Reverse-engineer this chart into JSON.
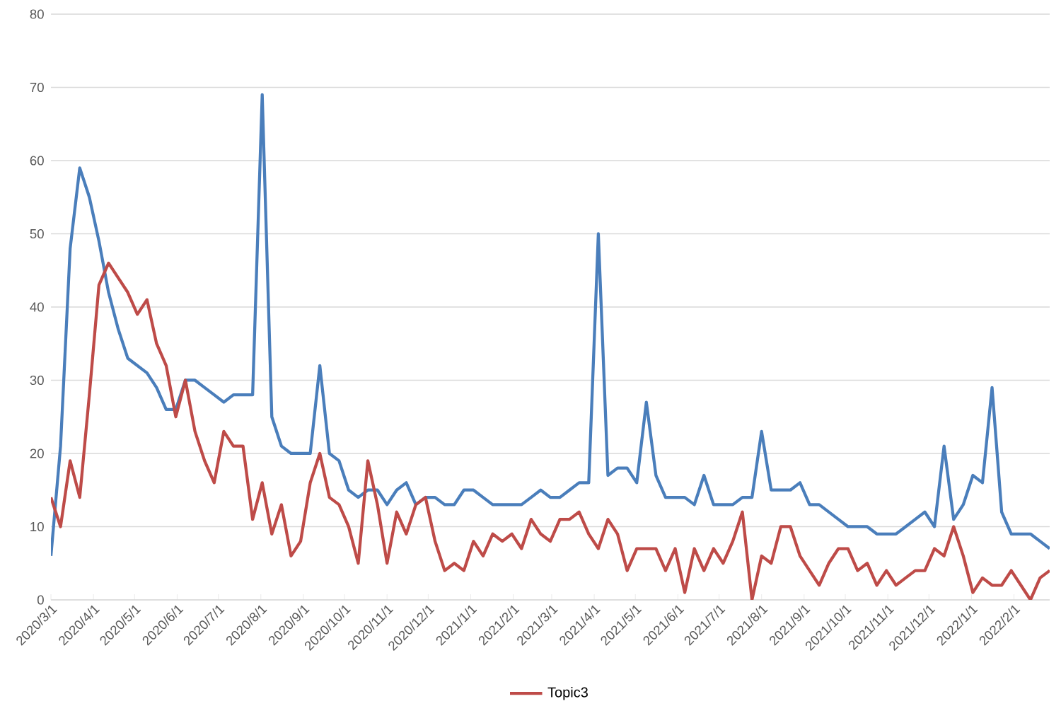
{
  "chart_data": {
    "type": "line",
    "x": [
      "2020-03-01",
      "2020-03-08",
      "2020-03-15",
      "2020-03-22",
      "2020-03-29",
      "2020-04-05",
      "2020-04-12",
      "2020-04-19",
      "2020-04-26",
      "2020-05-03",
      "2020-05-10",
      "2020-05-17",
      "2020-05-24",
      "2020-05-31",
      "2020-06-07",
      "2020-06-14",
      "2020-06-21",
      "2020-06-28",
      "2020-07-05",
      "2020-07-12",
      "2020-07-19",
      "2020-07-26",
      "2020-08-02",
      "2020-08-09",
      "2020-08-16",
      "2020-08-23",
      "2020-08-30",
      "2020-09-06",
      "2020-09-13",
      "2020-09-20",
      "2020-09-27",
      "2020-10-04",
      "2020-10-11",
      "2020-10-18",
      "2020-10-25",
      "2020-11-01",
      "2020-11-08",
      "2020-11-15",
      "2020-11-22",
      "2020-11-29",
      "2020-12-06",
      "2020-12-13",
      "2020-12-20",
      "2020-12-27",
      "2021-01-03",
      "2021-01-10",
      "2021-01-17",
      "2021-01-24",
      "2021-01-31",
      "2021-02-07",
      "2021-02-14",
      "2021-02-21",
      "2021-02-28",
      "2021-03-07",
      "2021-03-14",
      "2021-03-21",
      "2021-03-28",
      "2021-04-04",
      "2021-04-11",
      "2021-04-18",
      "2021-04-25",
      "2021-05-02",
      "2021-05-09",
      "2021-05-16",
      "2021-05-23",
      "2021-05-30",
      "2021-06-06",
      "2021-06-13",
      "2021-06-20",
      "2021-06-27",
      "2021-07-04",
      "2021-07-11",
      "2021-07-18",
      "2021-07-25",
      "2021-08-01",
      "2021-08-08",
      "2021-08-15",
      "2021-08-22",
      "2021-08-29",
      "2021-09-05",
      "2021-09-12",
      "2021-09-19",
      "2021-09-26",
      "2021-10-03",
      "2021-10-10",
      "2021-10-17",
      "2021-10-24",
      "2021-10-31",
      "2021-11-07",
      "2021-11-14",
      "2021-11-21",
      "2021-11-28",
      "2021-12-05",
      "2021-12-12",
      "2021-12-19",
      "2021-12-26",
      "2022-01-02",
      "2022-01-09",
      "2022-01-16",
      "2022-01-23",
      "2022-01-30",
      "2022-02-06",
      "2022-02-13",
      "2022-02-20",
      "2022-02-27"
    ],
    "series": [
      {
        "color": "#4a7ebb",
        "values": [
          6,
          21,
          48,
          59,
          55,
          49,
          42,
          37,
          33,
          32,
          31,
          29,
          26,
          26,
          30,
          30,
          29,
          28,
          27,
          28,
          28,
          28,
          69,
          25,
          21,
          20,
          20,
          20,
          32,
          20,
          19,
          15,
          14,
          15,
          15,
          13,
          15,
          16,
          13,
          14,
          14,
          13,
          13,
          15,
          15,
          14,
          13,
          13,
          13,
          13,
          14,
          15,
          14,
          14,
          15,
          16,
          16,
          50,
          17,
          18,
          18,
          16,
          27,
          17,
          14,
          14,
          14,
          13,
          17,
          13,
          13,
          13,
          14,
          14,
          23,
          15,
          15,
          15,
          16,
          13,
          13,
          12,
          11,
          10,
          10,
          10,
          9,
          9,
          9,
          10,
          11,
          12,
          10,
          21,
          11,
          13,
          17,
          16,
          29,
          12,
          9,
          9,
          9,
          8,
          7
        ]
      },
      {
        "name": "Topic3",
        "color": "#be4b48",
        "values": [
          14,
          10,
          19,
          14,
          28,
          43,
          46,
          44,
          42,
          39,
          41,
          35,
          32,
          25,
          30,
          23,
          19,
          16,
          23,
          21,
          21,
          11,
          16,
          9,
          13,
          6,
          8,
          16,
          20,
          14,
          13,
          10,
          5,
          19,
          13,
          5,
          12,
          9,
          13,
          14,
          8,
          4,
          5,
          4,
          8,
          6,
          9,
          8,
          9,
          7,
          11,
          9,
          8,
          11,
          11,
          12,
          9,
          7,
          11,
          9,
          4,
          7,
          7,
          7,
          4,
          7,
          1,
          7,
          4,
          7,
          5,
          8,
          12,
          0,
          6,
          5,
          10,
          10,
          6,
          4,
          2,
          5,
          7,
          7,
          4,
          5,
          2,
          4,
          2,
          3,
          4,
          4,
          7,
          6,
          10,
          6,
          1,
          3,
          2,
          2,
          4,
          2,
          0,
          3,
          4
        ]
      }
    ],
    "xlim": [
      "2020-03-01",
      "2022-02-27"
    ],
    "xticks": [
      {
        "value": "2020-03-01",
        "label": "2020/3/1"
      },
      {
        "value": "2020-04-01",
        "label": "2020/4/1"
      },
      {
        "value": "2020-05-01",
        "label": "2020/5/1"
      },
      {
        "value": "2020-06-01",
        "label": "2020/6/1"
      },
      {
        "value": "2020-07-01",
        "label": "2020/7/1"
      },
      {
        "value": "2020-08-01",
        "label": "2020/8/1"
      },
      {
        "value": "2020-09-01",
        "label": "2020/9/1"
      },
      {
        "value": "2020-10-01",
        "label": "2020/10/1"
      },
      {
        "value": "2020-11-01",
        "label": "2020/11/1"
      },
      {
        "value": "2020-12-01",
        "label": "2020/12/1"
      },
      {
        "value": "2021-01-01",
        "label": "2021/1/1"
      },
      {
        "value": "2021-02-01",
        "label": "2021/2/1"
      },
      {
        "value": "2021-03-01",
        "label": "2021/3/1"
      },
      {
        "value": "2021-04-01",
        "label": "2021/4/1"
      },
      {
        "value": "2021-05-01",
        "label": "2021/5/1"
      },
      {
        "value": "2021-06-01",
        "label": "2021/6/1"
      },
      {
        "value": "2021-07-01",
        "label": "2021/7/1"
      },
      {
        "value": "2021-08-01",
        "label": "2021/8/1"
      },
      {
        "value": "2021-09-01",
        "label": "2021/9/1"
      },
      {
        "value": "2021-10-01",
        "label": "2021/10/1"
      },
      {
        "value": "2021-11-01",
        "label": "2021/11/1"
      },
      {
        "value": "2021-12-01",
        "label": "2021/12/1"
      },
      {
        "value": "2022-01-01",
        "label": "2022/1/1"
      },
      {
        "value": "2022-02-01",
        "label": "2022/2/1"
      }
    ],
    "ylim": [
      0,
      80
    ],
    "yticks": [
      0,
      10,
      20,
      30,
      40,
      50,
      60,
      70,
      80
    ],
    "grid": "y",
    "legend": "bottom",
    "marker": "none",
    "line_style": "solid"
  }
}
